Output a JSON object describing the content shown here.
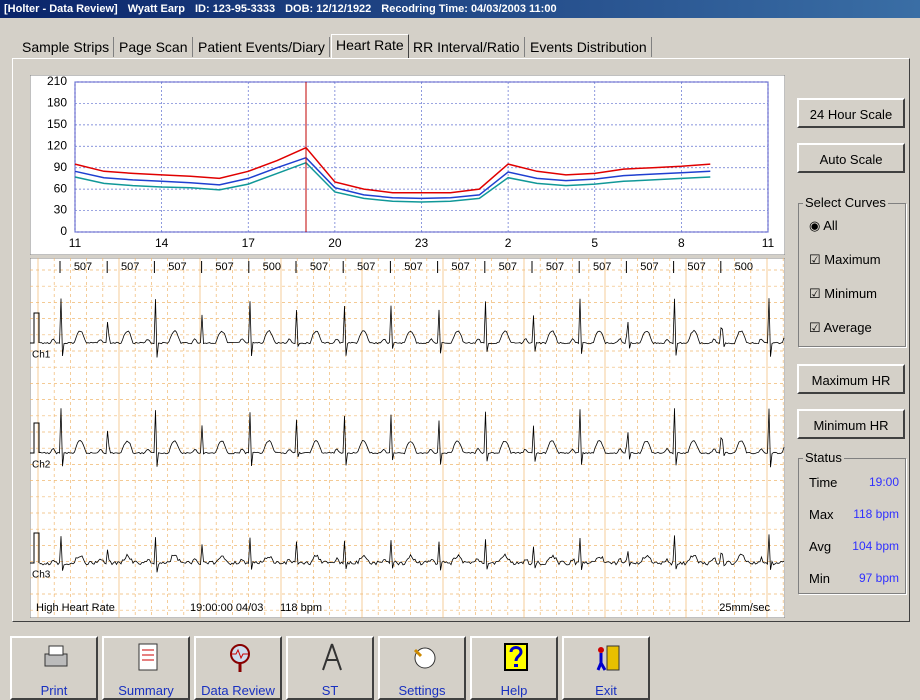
{
  "title_bar": {
    "app": "[Holter - Data Review]",
    "patient": "Wyatt Earp",
    "id": "ID: 123-95-3333",
    "dob": "DOB: 12/12/1922",
    "recording": "Recodring Time: 04/03/2003 11:00"
  },
  "tabs": [
    "Sample Strips",
    "Page Scan",
    "Patient Events/Diary",
    "Heart Rate",
    "RR Interval/Ratio",
    "Events Distribution"
  ],
  "active_tab": 3,
  "chart_data": {
    "type": "line",
    "x": [
      0,
      1,
      2,
      3,
      4,
      5,
      6,
      7,
      8,
      9,
      10,
      11,
      12,
      13,
      14,
      15,
      16,
      17,
      18,
      19,
      20,
      21,
      22
    ],
    "series": [
      {
        "name": "Maximum",
        "color": "#e00000",
        "values": [
          95,
          85,
          82,
          80,
          78,
          75,
          85,
          100,
          118,
          70,
          60,
          55,
          55,
          55,
          60,
          95,
          85,
          80,
          82,
          88,
          90,
          92,
          95
        ]
      },
      {
        "name": "Average",
        "color": "#1f3fd0",
        "values": [
          85,
          76,
          73,
          71,
          69,
          66,
          75,
          90,
          104,
          62,
          52,
          48,
          47,
          48,
          52,
          84,
          75,
          72,
          74,
          79,
          81,
          83,
          85
        ]
      },
      {
        "name": "Minimum",
        "color": "#109898",
        "values": [
          77,
          68,
          65,
          63,
          62,
          59,
          67,
          82,
          97,
          56,
          47,
          43,
          42,
          43,
          47,
          76,
          68,
          65,
          67,
          71,
          73,
          75,
          77
        ]
      }
    ],
    "xlim": [
      0,
      24
    ],
    "xticks": [
      {
        "value": 0,
        "label": "11"
      },
      {
        "value": 3,
        "label": "14"
      },
      {
        "value": 6,
        "label": "17"
      },
      {
        "value": 9,
        "label": "20"
      },
      {
        "value": 12,
        "label": "23"
      },
      {
        "value": 15,
        "label": "2"
      },
      {
        "value": 18,
        "label": "5"
      },
      {
        "value": 21,
        "label": "8"
      },
      {
        "value": 24,
        "label": "11"
      }
    ],
    "ylim": [
      0,
      210
    ],
    "yticks": [
      0,
      30,
      60,
      90,
      120,
      150,
      180,
      210
    ],
    "grid": true,
    "cursor_x": 8
  },
  "ecg": {
    "rr_labels": [
      "507",
      "507",
      "507",
      "507",
      "500",
      "507",
      "507",
      "507",
      "507",
      "507",
      "507",
      "507",
      "507",
      "507",
      "500"
    ],
    "channels": [
      "Ch1",
      "Ch2",
      "Ch3"
    ],
    "event": "High Heart Rate",
    "time": "19:00:00 04/03",
    "rate": "118 bpm",
    "speed": "25mm/sec"
  },
  "buttons": {
    "scale24": "24 Hour Scale",
    "auto": "Auto Scale",
    "max_hr": "Maximum HR",
    "min_hr": "Minimum HR"
  },
  "curves": {
    "title": "Select Curves",
    "all": "All",
    "maximum": "Maximum",
    "minimum": "Minimum",
    "average": "Average"
  },
  "status": {
    "title": "Status",
    "rows": [
      [
        "Time",
        "19:00"
      ],
      [
        "Max",
        "118 bpm"
      ],
      [
        "Avg",
        "104 bpm"
      ],
      [
        "Min",
        "97 bpm"
      ]
    ]
  },
  "toolbar": [
    "Print",
    "Summary",
    "Data Review",
    "ST",
    "Settings",
    "Help",
    "Exit"
  ]
}
